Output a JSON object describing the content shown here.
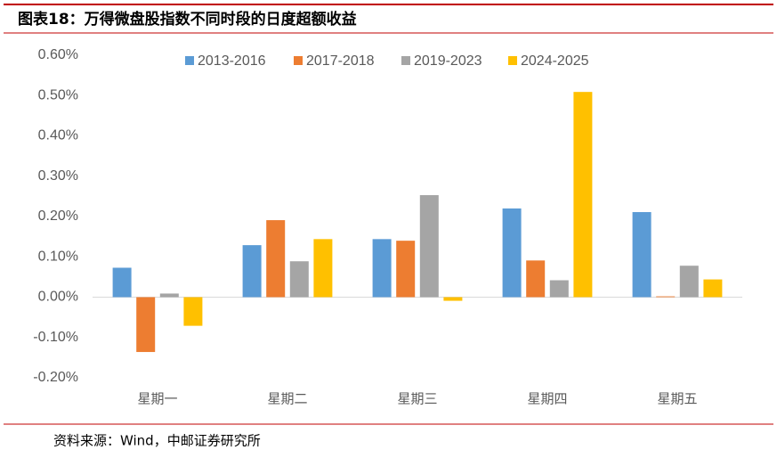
{
  "chart_data": {
    "type": "bar",
    "title": "图表18：万得微盘股指数不同时段的日度超额收益",
    "source": "资料来源：Wind，中邮证券研究所",
    "categories": [
      "星期一",
      "星期二",
      "星期三",
      "星期四",
      "星期五"
    ],
    "series": [
      {
        "name": "2013-2016",
        "color": "#5b9bd5",
        "values": [
          0.073,
          0.129,
          0.144,
          0.22,
          0.211
        ]
      },
      {
        "name": "2017-2018",
        "color": "#ed7d31",
        "values": [
          -0.136,
          0.191,
          0.14,
          0.091,
          0.002
        ]
      },
      {
        "name": "2019-2023",
        "color": "#a5a5a5",
        "values": [
          0.009,
          0.089,
          0.253,
          0.042,
          0.078
        ]
      },
      {
        "name": "2024-2025",
        "color": "#ffc000",
        "values": [
          -0.071,
          0.144,
          -0.009,
          0.509,
          0.044
        ]
      }
    ],
    "ylim": [
      -0.2,
      0.6
    ],
    "yticks": [
      {
        "value": -0.2,
        "label": "-0.20%"
      },
      {
        "value": -0.1,
        "label": "-0.10%"
      },
      {
        "value": 0,
        "label": "0.00%"
      },
      {
        "value": 0.1,
        "label": "0.10%"
      },
      {
        "value": 0.2,
        "label": "0.20%"
      },
      {
        "value": 0.3,
        "label": "0.30%"
      },
      {
        "value": 0.4,
        "label": "0.40%"
      },
      {
        "value": 0.5,
        "label": "0.50%"
      },
      {
        "value": 0.6,
        "label": "0.60%"
      }
    ],
    "legend": "top"
  }
}
